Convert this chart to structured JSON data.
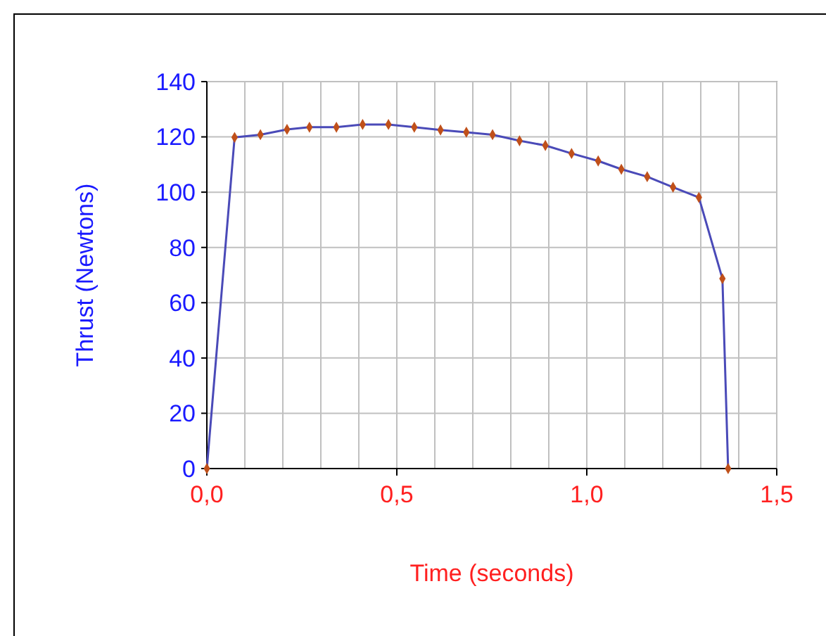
{
  "chart_data": {
    "type": "line",
    "xlabel": "Time  (seconds)",
    "ylabel": "Thrust  (Newtons)",
    "x": [
      0,
      0.073,
      0.141,
      0.211,
      0.27,
      0.341,
      0.41,
      0.478,
      0.546,
      0.615,
      0.683,
      0.752,
      0.823,
      0.891,
      0.96,
      1.03,
      1.091,
      1.159,
      1.227,
      1.295,
      1.357,
      1.372
    ],
    "series": [
      {
        "color": "#4a4ab8",
        "values": [
          0,
          119.8,
          120.8,
          122.7,
          123.5,
          123.5,
          124.5,
          124.5,
          123.5,
          122.5,
          121.7,
          120.8,
          118.6,
          116.9,
          114.0,
          111.3,
          108.3,
          105.6,
          101.8,
          98.1,
          68.7,
          0
        ]
      }
    ],
    "xlim": [
      0,
      1.5
    ],
    "ylim": [
      0,
      140
    ],
    "xticks": [
      {
        "value": 0,
        "label": "0,0"
      },
      {
        "value": 0.1,
        "label": null
      },
      {
        "value": 0.2,
        "label": null
      },
      {
        "value": 0.3,
        "label": null
      },
      {
        "value": 0.4,
        "label": null
      },
      {
        "value": 0.5,
        "label": "0,5"
      },
      {
        "value": 0.6,
        "label": null
      },
      {
        "value": 0.7,
        "label": null
      },
      {
        "value": 0.8,
        "label": null
      },
      {
        "value": 0.9,
        "label": null
      },
      {
        "value": 1,
        "label": "1,0"
      },
      {
        "value": 1.1,
        "label": null
      },
      {
        "value": 1.2,
        "label": null
      },
      {
        "value": 1.3,
        "label": null
      },
      {
        "value": 1.4,
        "label": null
      },
      {
        "value": 1.5,
        "label": "1,5"
      }
    ],
    "yticks": [
      0,
      20,
      40,
      60,
      80,
      100,
      120,
      140
    ],
    "grid": true,
    "marker": "diamond",
    "line_style": "solid"
  }
}
